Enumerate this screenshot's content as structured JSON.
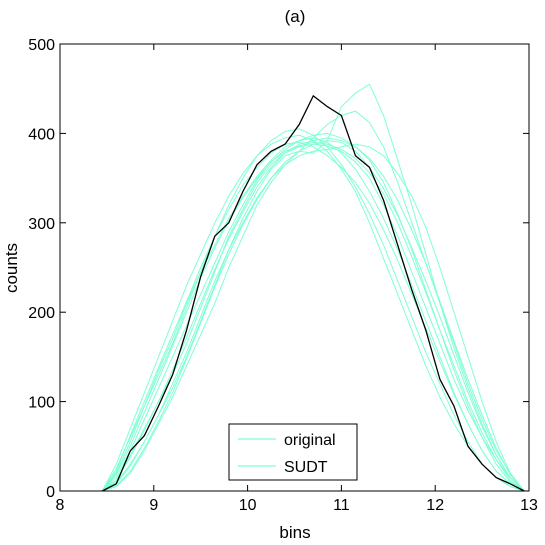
{
  "chart_data": {
    "type": "line",
    "title": "(a)",
    "xlabel": "bins",
    "ylabel": "counts",
    "xlim": [
      8,
      13
    ],
    "ylim": [
      0,
      500
    ],
    "xticks": [
      8,
      9,
      10,
      11,
      12,
      13
    ],
    "yticks": [
      0,
      100,
      200,
      300,
      400,
      500
    ],
    "grid": false,
    "legend_position": "bottom-center",
    "legend": [
      "original",
      "SUDT"
    ],
    "colors": {
      "original": "#7fffd4",
      "SUDT": "#000000"
    },
    "x": [
      8.45,
      8.6,
      8.75,
      8.9,
      9.05,
      9.2,
      9.35,
      9.5,
      9.65,
      9.8,
      9.95,
      10.1,
      10.25,
      10.4,
      10.55,
      10.7,
      10.85,
      11.0,
      11.15,
      11.3,
      11.45,
      11.6,
      11.75,
      11.9,
      12.05,
      12.2,
      12.35,
      12.5,
      12.65,
      12.8,
      12.95
    ],
    "series": [
      {
        "name": "original",
        "values": [
          0,
          12,
          40,
          70,
          100,
          130,
          165,
          205,
          245,
          285,
          315,
          345,
          365,
          378,
          385,
          388,
          386,
          380,
          368,
          350,
          320,
          285,
          245,
          205,
          165,
          125,
          90,
          60,
          35,
          15,
          0
        ]
      },
      {
        "name": "original",
        "values": [
          0,
          25,
          60,
          95,
          130,
          165,
          205,
          245,
          285,
          320,
          350,
          375,
          392,
          402,
          405,
          398,
          385,
          365,
          340,
          310,
          275,
          235,
          195,
          155,
          120,
          85,
          55,
          30,
          15,
          5,
          0
        ]
      },
      {
        "name": "original",
        "values": [
          0,
          5,
          20,
          45,
          75,
          105,
          140,
          175,
          210,
          250,
          285,
          320,
          345,
          365,
          380,
          395,
          410,
          420,
          425,
          412,
          385,
          345,
          300,
          255,
          210,
          165,
          120,
          80,
          45,
          20,
          0
        ]
      },
      {
        "name": "original",
        "values": [
          0,
          10,
          30,
          55,
          85,
          115,
          150,
          190,
          230,
          270,
          305,
          335,
          360,
          375,
          380,
          378,
          392,
          430,
          445,
          455,
          420,
          370,
          320,
          265,
          210,
          160,
          115,
          75,
          40,
          15,
          0
        ]
      },
      {
        "name": "original",
        "values": [
          0,
          30,
          70,
          110,
          150,
          190,
          230,
          265,
          300,
          330,
          355,
          375,
          388,
          395,
          398,
          392,
          380,
          360,
          335,
          300,
          260,
          220,
          180,
          140,
          105,
          75,
          50,
          30,
          15,
          5,
          0
        ]
      },
      {
        "name": "original",
        "values": [
          0,
          15,
          45,
          80,
          115,
          150,
          185,
          220,
          255,
          290,
          320,
          348,
          368,
          382,
          392,
          398,
          400,
          395,
          385,
          370,
          345,
          310,
          270,
          225,
          180,
          135,
          95,
          60,
          30,
          10,
          0
        ]
      },
      {
        "name": "original",
        "values": [
          0,
          8,
          28,
          55,
          85,
          120,
          155,
          195,
          235,
          270,
          300,
          328,
          350,
          365,
          375,
          380,
          382,
          385,
          388,
          385,
          375,
          355,
          330,
          295,
          250,
          200,
          150,
          100,
          55,
          20,
          0
        ]
      },
      {
        "name": "original",
        "values": [
          0,
          20,
          55,
          95,
          135,
          170,
          210,
          245,
          275,
          305,
          330,
          352,
          370,
          385,
          392,
          395,
          390,
          378,
          360,
          335,
          305,
          270,
          230,
          190,
          150,
          110,
          75,
          45,
          22,
          8,
          0
        ]
      },
      {
        "name": "original",
        "values": [
          0,
          12,
          38,
          68,
          100,
          135,
          172,
          210,
          248,
          282,
          312,
          340,
          362,
          378,
          388,
          392,
          395,
          392,
          385,
          372,
          352,
          325,
          292,
          255,
          212,
          168,
          125,
          85,
          48,
          18,
          0
        ]
      },
      {
        "name": "original",
        "values": [
          0,
          18,
          50,
          88,
          125,
          162,
          200,
          238,
          272,
          302,
          328,
          350,
          368,
          380,
          386,
          390,
          388,
          382,
          372,
          356,
          332,
          300,
          262,
          222,
          180,
          140,
          100,
          65,
          35,
          12,
          0
        ]
      },
      {
        "name": "original",
        "values": [
          0,
          6,
          22,
          48,
          78,
          110,
          148,
          188,
          228,
          265,
          298,
          326,
          350,
          368,
          380,
          388,
          392,
          390,
          380,
          362,
          338,
          308,
          272,
          235,
          195,
          152,
          110,
          72,
          40,
          15,
          0
        ]
      },
      {
        "name": "original",
        "values": [
          0,
          22,
          62,
          100,
          138,
          175,
          212,
          250,
          285,
          315,
          342,
          362,
          378,
          388,
          390,
          385,
          375,
          362,
          345,
          322,
          292,
          258,
          220,
          182,
          145,
          108,
          75,
          45,
          22,
          8,
          0
        ]
      },
      {
        "name": "SUDT",
        "values": [
          0,
          8,
          45,
          62,
          95,
          130,
          180,
          240,
          285,
          300,
          335,
          365,
          380,
          388,
          410,
          442,
          430,
          420,
          375,
          362,
          325,
          275,
          225,
          180,
          125,
          95,
          50,
          30,
          15,
          8,
          0
        ]
      }
    ]
  }
}
